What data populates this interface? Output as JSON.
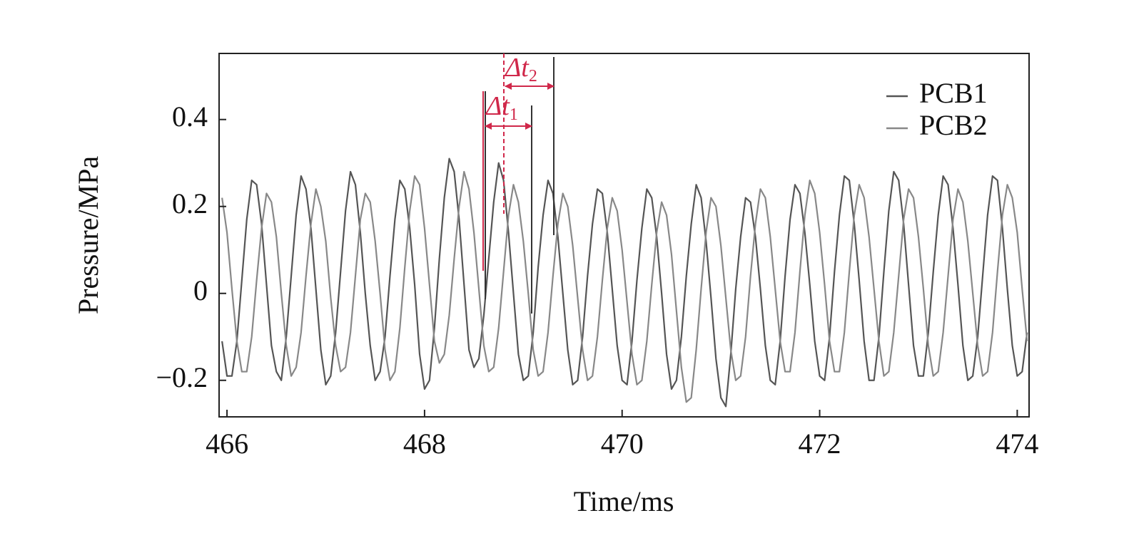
{
  "chart_data": {
    "type": "line",
    "x_label": "Time/ms",
    "y_label": "Pressure/MPa",
    "x": [
      465.95,
      466.0,
      466.05,
      466.1,
      466.15,
      466.2,
      466.25,
      466.3,
      466.35,
      466.4,
      466.45,
      466.5,
      466.55,
      466.6,
      466.65,
      466.7,
      466.75,
      466.8,
      466.85,
      466.9,
      466.95,
      467.0,
      467.05,
      467.1,
      467.15,
      467.2,
      467.25,
      467.3,
      467.35,
      467.4,
      467.45,
      467.5,
      467.55,
      467.6,
      467.65,
      467.7,
      467.75,
      467.8,
      467.85,
      467.9,
      467.95,
      468.0,
      468.05,
      468.1,
      468.15,
      468.2,
      468.25,
      468.3,
      468.35,
      468.4,
      468.45,
      468.5,
      468.55,
      468.6,
      468.65,
      468.7,
      468.75,
      468.8,
      468.85,
      468.9,
      468.95,
      469.0,
      469.05,
      469.1,
      469.15,
      469.2,
      469.25,
      469.3,
      469.35,
      469.4,
      469.45,
      469.5,
      469.55,
      469.6,
      469.65,
      469.7,
      469.75,
      469.8,
      469.85,
      469.9,
      469.95,
      470.0,
      470.05,
      470.1,
      470.15,
      470.2,
      470.25,
      470.3,
      470.35,
      470.4,
      470.45,
      470.5,
      470.55,
      470.6,
      470.65,
      470.7,
      470.75,
      470.8,
      470.85,
      470.9,
      470.95,
      471.0,
      471.05,
      471.1,
      471.15,
      471.2,
      471.25,
      471.3,
      471.35,
      471.4,
      471.45,
      471.5,
      471.55,
      471.6,
      471.65,
      471.7,
      471.75,
      471.8,
      471.85,
      471.9,
      471.95,
      472.0,
      472.05,
      472.1,
      472.15,
      472.2,
      472.25,
      472.3,
      472.35,
      472.4,
      472.45,
      472.5,
      472.55,
      472.6,
      472.65,
      472.7,
      472.75,
      472.8,
      472.85,
      472.9,
      472.95,
      473.0,
      473.05,
      473.1,
      473.15,
      473.2,
      473.25,
      473.3,
      473.35,
      473.4,
      473.45,
      473.5,
      473.55,
      473.6,
      473.65,
      473.7,
      473.75,
      473.8,
      473.85,
      473.9,
      473.95,
      474.0,
      474.05,
      474.1
    ],
    "series": [
      {
        "name": "PCB1",
        "color": "#555555",
        "values": [
          -0.11,
          -0.19,
          -0.19,
          -0.11,
          0.03,
          0.17,
          0.26,
          0.25,
          0.16,
          0.02,
          -0.12,
          -0.18,
          -0.2,
          -0.1,
          0.04,
          0.18,
          0.27,
          0.24,
          0.15,
          0.01,
          -0.13,
          -0.21,
          -0.19,
          -0.09,
          0.05,
          0.19,
          0.28,
          0.25,
          0.14,
          0.0,
          -0.12,
          -0.2,
          -0.18,
          -0.1,
          0.04,
          0.17,
          0.26,
          0.24,
          0.15,
          0.02,
          -0.14,
          -0.22,
          -0.2,
          -0.08,
          0.08,
          0.22,
          0.31,
          0.28,
          0.17,
          0.02,
          -0.13,
          -0.17,
          -0.15,
          -0.05,
          0.08,
          0.21,
          0.3,
          0.26,
          0.14,
          0.0,
          -0.14,
          -0.2,
          -0.19,
          -0.09,
          0.06,
          0.18,
          0.26,
          0.23,
          0.13,
          0.0,
          -0.13,
          -0.21,
          -0.2,
          -0.1,
          0.04,
          0.16,
          0.24,
          0.23,
          0.14,
          0.01,
          -0.12,
          -0.2,
          -0.21,
          -0.11,
          0.03,
          0.15,
          0.24,
          0.22,
          0.13,
          0.0,
          -0.14,
          -0.22,
          -0.2,
          -0.1,
          0.04,
          0.16,
          0.25,
          0.22,
          0.12,
          -0.01,
          -0.15,
          -0.24,
          -0.26,
          -0.14,
          0.01,
          0.13,
          0.22,
          0.21,
          0.13,
          0.01,
          -0.12,
          -0.2,
          -0.21,
          -0.11,
          0.04,
          0.17,
          0.25,
          0.23,
          0.14,
          0.02,
          -0.11,
          -0.19,
          -0.2,
          -0.1,
          0.05,
          0.18,
          0.27,
          0.26,
          0.16,
          0.03,
          -0.11,
          -0.2,
          -0.2,
          -0.1,
          0.05,
          0.19,
          0.28,
          0.26,
          0.16,
          0.02,
          -0.12,
          -0.19,
          -0.19,
          -0.09,
          0.05,
          0.18,
          0.27,
          0.25,
          0.15,
          0.02,
          -0.12,
          -0.2,
          -0.19,
          -0.1,
          0.04,
          0.18,
          0.27,
          0.26,
          0.15,
          0.01,
          -0.12,
          -0.19,
          -0.18,
          -0.09
        ]
      },
      {
        "name": "PCB2",
        "color": "#888888",
        "values": [
          0.22,
          0.14,
          0.01,
          -0.11,
          -0.18,
          -0.18,
          -0.1,
          0.03,
          0.15,
          0.23,
          0.21,
          0.13,
          0.0,
          -0.12,
          -0.19,
          -0.17,
          -0.09,
          0.04,
          0.16,
          0.24,
          0.2,
          0.12,
          -0.01,
          -0.12,
          -0.18,
          -0.17,
          -0.09,
          0.04,
          0.17,
          0.23,
          0.21,
          0.12,
          0.0,
          -0.13,
          -0.2,
          -0.18,
          -0.08,
          0.06,
          0.19,
          0.27,
          0.25,
          0.15,
          0.02,
          -0.11,
          -0.16,
          -0.14,
          -0.05,
          0.08,
          0.2,
          0.28,
          0.24,
          0.14,
          0.01,
          -0.12,
          -0.18,
          -0.17,
          -0.08,
          0.05,
          0.18,
          0.25,
          0.21,
          0.12,
          0.0,
          -0.13,
          -0.19,
          -0.18,
          -0.09,
          0.04,
          0.16,
          0.23,
          0.2,
          0.11,
          -0.01,
          -0.13,
          -0.2,
          -0.19,
          -0.1,
          0.03,
          0.15,
          0.22,
          0.19,
          0.1,
          -0.02,
          -0.14,
          -0.21,
          -0.2,
          -0.11,
          0.02,
          0.14,
          0.21,
          0.18,
          0.09,
          -0.04,
          -0.17,
          -0.25,
          -0.24,
          -0.13,
          0.01,
          0.14,
          0.22,
          0.2,
          0.11,
          -0.01,
          -0.13,
          -0.2,
          -0.19,
          -0.1,
          0.04,
          0.16,
          0.24,
          0.22,
          0.13,
          0.01,
          -0.11,
          -0.18,
          -0.18,
          -0.09,
          0.05,
          0.18,
          0.26,
          0.23,
          0.14,
          0.02,
          -0.11,
          -0.18,
          -0.18,
          -0.09,
          0.05,
          0.18,
          0.25,
          0.22,
          0.13,
          0.01,
          -0.11,
          -0.19,
          -0.18,
          -0.09,
          0.04,
          0.17,
          0.24,
          0.22,
          0.13,
          0.01,
          -0.12,
          -0.19,
          -0.18,
          -0.09,
          0.04,
          0.17,
          0.24,
          0.21,
          0.12,
          0.0,
          -0.12,
          -0.19,
          -0.18,
          -0.09,
          0.05,
          0.18,
          0.25,
          0.22,
          0.14,
          0.01,
          -0.11
        ]
      }
    ],
    "xlim": [
      465.92,
      474.12
    ],
    "ylim": [
      -0.284,
      0.552
    ],
    "xticks": [
      466,
      468,
      470,
      472,
      474
    ],
    "yticks": [
      {
        "value": -0.2,
        "label": "−0.2"
      },
      0,
      0.2,
      0.4
    ],
    "legend": "upper right",
    "annotations": [
      {
        "label": "Δt",
        "subscript": "1"
      },
      {
        "label": "Δt",
        "subscript": "2"
      }
    ]
  }
}
